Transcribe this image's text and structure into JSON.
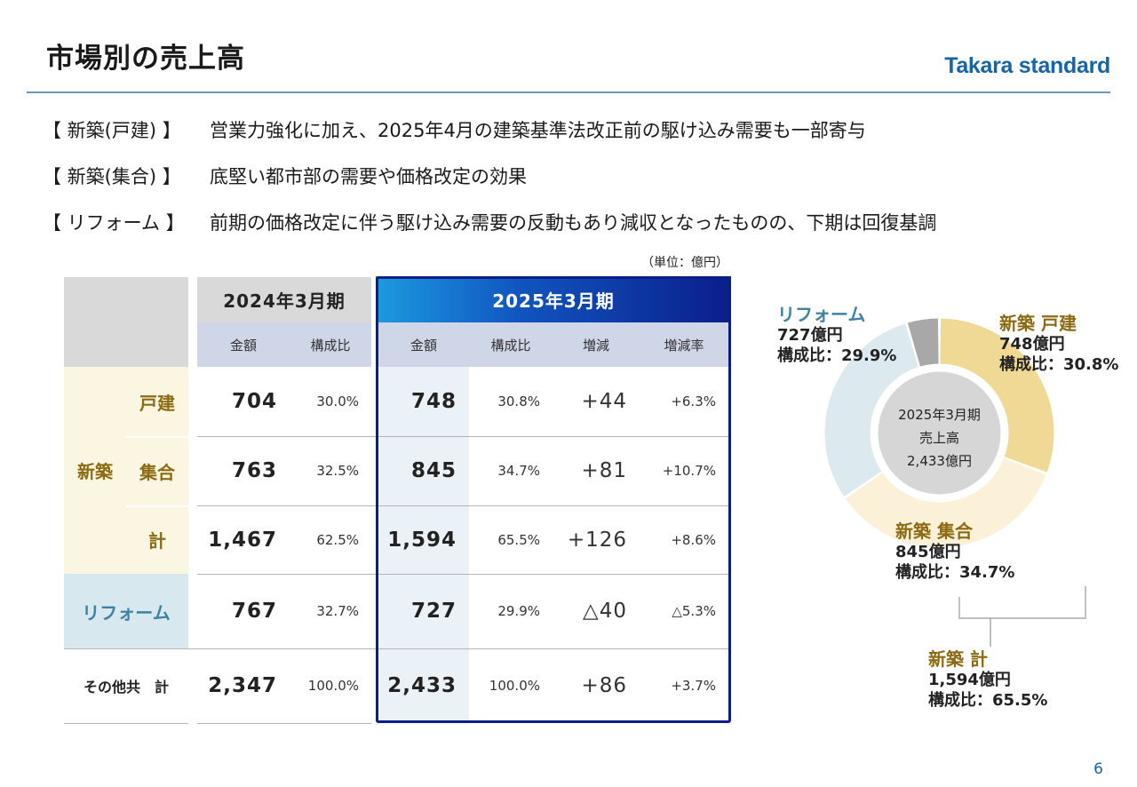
{
  "title": "市場別の売上高",
  "logo": "Takara standard",
  "bullets": [
    {
      "label": "【 新築(戸建) 】",
      "text": "営業力強化に加え、2025年4月の建築基準法改正前の駆け込み需要も一部寄与"
    },
    {
      "label": "【 新築(集合) 】",
      "text": "底堅い都市部の需要や価格改定の効果"
    },
    {
      "label": "【 リフォーム 】",
      "text": "前期の価格改定に伴う駆け込み需要の反動もあり減収となったものの、下期は回復基調"
    }
  ],
  "unit": "（単位：億円）",
  "table": {
    "prev_year": "2024年3月期",
    "cur_year": "2025年3月期",
    "col_amount": "金額",
    "col_ratio": "構成比",
    "col_diff": "増減",
    "col_rate": "増減率",
    "group_new": "新築",
    "rows": [
      {
        "label": "戸建",
        "prev_amount": "704",
        "prev_ratio": "30.0%",
        "amount": "748",
        "ratio": "30.8%",
        "diff": "+44",
        "rate": "+6.3%"
      },
      {
        "label": "集合",
        "prev_amount": "763",
        "prev_ratio": "32.5%",
        "amount": "845",
        "ratio": "34.7%",
        "diff": "+81",
        "rate": "+10.7%"
      },
      {
        "label": "計",
        "prev_amount": "1,467",
        "prev_ratio": "62.5%",
        "amount": "1,594",
        "ratio": "65.5%",
        "diff": "+126",
        "rate": "+8.6%"
      },
      {
        "label": "リフォーム",
        "prev_amount": "767",
        "prev_ratio": "32.7%",
        "amount": "727",
        "ratio": "29.9%",
        "diff": "△40",
        "rate": "△5.3%"
      },
      {
        "label": "その他共　計",
        "prev_amount": "2,347",
        "prev_ratio": "100.0%",
        "amount": "2,433",
        "ratio": "100.0%",
        "diff": "+86",
        "rate": "+3.7%"
      }
    ]
  },
  "chart_data": {
    "type": "pie",
    "center": {
      "line1": "2025年3月期",
      "line2": "売上高",
      "line3": "2,433億円"
    },
    "slices": [
      {
        "name": "新築 戸建",
        "value": 748,
        "share": "30.8%",
        "color": "#f0d994"
      },
      {
        "name": "新築 集合",
        "value": 845,
        "share": "34.7%",
        "color": "#fbf1d8"
      },
      {
        "name": "リフォーム",
        "value": 727,
        "share": "29.9%",
        "color": "#dceaf0"
      },
      {
        "name": "その他",
        "value": 113,
        "share": "",
        "color": "#a8a8a8"
      }
    ],
    "labels": {
      "kodate": {
        "name": "新築 戸建",
        "amount": "748億円",
        "ratio": "構成比：30.8%"
      },
      "shugo": {
        "name": "新築 集合",
        "amount": "845億円",
        "ratio": "構成比：34.7%"
      },
      "reform": {
        "name": "リフォーム",
        "amount": "727億円",
        "ratio": "構成比：29.9%"
      },
      "total": {
        "name": "新築 計",
        "amount": "1,594億円",
        "ratio": "構成比：65.5%"
      }
    }
  },
  "page_number": "6"
}
